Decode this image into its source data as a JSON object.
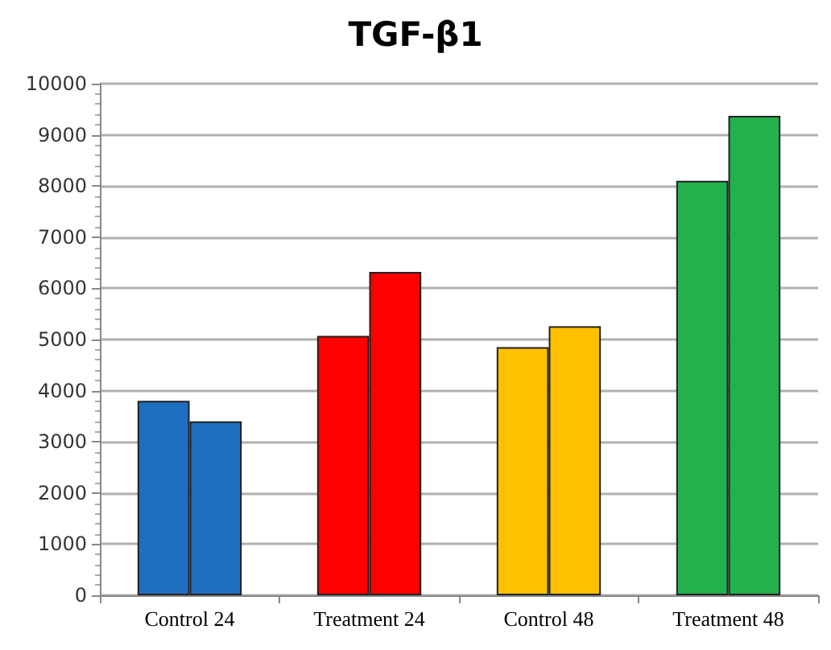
{
  "chart_data": {
    "type": "bar",
    "title": "TGF-β1",
    "categories": [
      "Control 24",
      "Treatment 24",
      "Control 48",
      "Treatment 48"
    ],
    "series": [
      {
        "colors": [
          "#1f6fc0",
          "#ff0000",
          "#ffc000",
          "#22b14c"
        ],
        "values": [
          3800,
          5070,
          4850,
          8100
        ]
      },
      {
        "colors": [
          "#1f6fc0",
          "#ff0000",
          "#ffc000",
          "#22b14c"
        ],
        "values": [
          3400,
          6320,
          5260,
          9370
        ]
      }
    ],
    "ylim": [
      0,
      10000
    ],
    "yticks": [
      0,
      1000,
      2000,
      3000,
      4000,
      5000,
      6000,
      7000,
      8000,
      9000,
      10000
    ],
    "grid": "y"
  }
}
